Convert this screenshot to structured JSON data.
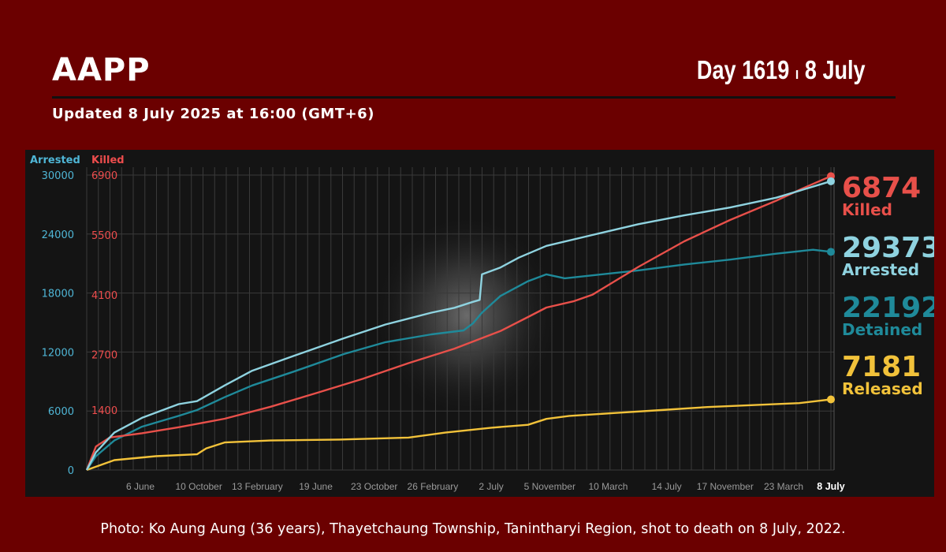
{
  "header": {
    "org": "AAPP",
    "day_label": "Day 1619",
    "day_sep": "ı",
    "day_date": "8 July",
    "updated": "Updated 8 July 2025 at 16:00 (GMT+6)"
  },
  "caption": "Photo: Ko Aung Aung (36 years), Thayetchaung Township, Tanintharyi Region, shot to death on 8 July, 2022.",
  "colors": {
    "arrested": "#8fd3e0",
    "detained": "#1f8a9a",
    "killed": "#e8504a",
    "released": "#f2c23a",
    "axis_arrested": "#4fb6d6",
    "axis_killed": "#ee4d4d"
  },
  "chart_data": {
    "type": "line",
    "left_axis": {
      "label": "Arrested",
      "ticks": [
        0,
        6000,
        12000,
        18000,
        24000,
        30000
      ],
      "ylim": [
        0,
        30000
      ]
    },
    "right_axis": {
      "label": "Killed",
      "ticks": [
        "1400",
        "2700",
        "4100",
        "5500",
        "6900"
      ],
      "ylim": [
        0,
        6900
      ]
    },
    "x_ticks": [
      "6 June",
      "10 October",
      "13 February",
      "19 June",
      "23 October",
      "26 February",
      "2 July",
      "5 November",
      "10 March",
      "14 July",
      "17 November",
      "23 March",
      "8 July"
    ],
    "x_range": [
      0,
      1619
    ],
    "series": [
      {
        "name": "Arrested",
        "key": "arrested",
        "axis": "left",
        "final": "29373",
        "final_label": "Arrested",
        "points": [
          [
            0,
            0
          ],
          [
            20,
            1800
          ],
          [
            60,
            3800
          ],
          [
            120,
            5300
          ],
          [
            200,
            6700
          ],
          [
            240,
            7000
          ],
          [
            300,
            8600
          ],
          [
            360,
            10100
          ],
          [
            450,
            11600
          ],
          [
            560,
            13400
          ],
          [
            650,
            14800
          ],
          [
            750,
            16000
          ],
          [
            800,
            16500
          ],
          [
            840,
            17100
          ],
          [
            855,
            17300
          ],
          [
            860,
            19900
          ],
          [
            900,
            20600
          ],
          [
            940,
            21600
          ],
          [
            1000,
            22800
          ],
          [
            1100,
            23900
          ],
          [
            1200,
            25000
          ],
          [
            1300,
            25900
          ],
          [
            1400,
            26700
          ],
          [
            1500,
            27700
          ],
          [
            1619,
            29373
          ]
        ]
      },
      {
        "name": "Detained",
        "key": "detained",
        "axis": "left",
        "final": "22192",
        "final_label": "Detained",
        "points": [
          [
            0,
            0
          ],
          [
            20,
            1400
          ],
          [
            60,
            3000
          ],
          [
            120,
            4400
          ],
          [
            200,
            5500
          ],
          [
            240,
            6100
          ],
          [
            300,
            7400
          ],
          [
            360,
            8600
          ],
          [
            450,
            10000
          ],
          [
            560,
            11800
          ],
          [
            650,
            13000
          ],
          [
            750,
            13800
          ],
          [
            820,
            14200
          ],
          [
            840,
            14900
          ],
          [
            860,
            16000
          ],
          [
            900,
            17700
          ],
          [
            960,
            19200
          ],
          [
            1000,
            19900
          ],
          [
            1040,
            19500
          ],
          [
            1100,
            19800
          ],
          [
            1200,
            20300
          ],
          [
            1300,
            20900
          ],
          [
            1400,
            21400
          ],
          [
            1500,
            22000
          ],
          [
            1580,
            22400
          ],
          [
            1619,
            22192
          ]
        ]
      },
      {
        "name": "Killed",
        "key": "killed",
        "axis": "right",
        "final": "6874",
        "final_label": "Killed",
        "points": [
          [
            0,
            0
          ],
          [
            20,
            550
          ],
          [
            50,
            760
          ],
          [
            120,
            860
          ],
          [
            200,
            1000
          ],
          [
            300,
            1200
          ],
          [
            400,
            1480
          ],
          [
            500,
            1800
          ],
          [
            600,
            2130
          ],
          [
            700,
            2500
          ],
          [
            800,
            2840
          ],
          [
            900,
            3250
          ],
          [
            960,
            3580
          ],
          [
            1000,
            3800
          ],
          [
            1060,
            3950
          ],
          [
            1100,
            4100
          ],
          [
            1200,
            4750
          ],
          [
            1300,
            5350
          ],
          [
            1400,
            5850
          ],
          [
            1500,
            6300
          ],
          [
            1560,
            6600
          ],
          [
            1619,
            6874
          ]
        ]
      },
      {
        "name": "Released",
        "key": "released",
        "axis": "left",
        "final": "7181",
        "final_label": "Released",
        "points": [
          [
            0,
            0
          ],
          [
            30,
            500
          ],
          [
            60,
            1000
          ],
          [
            150,
            1400
          ],
          [
            240,
            1600
          ],
          [
            260,
            2200
          ],
          [
            300,
            2800
          ],
          [
            400,
            3000
          ],
          [
            550,
            3100
          ],
          [
            700,
            3300
          ],
          [
            780,
            3800
          ],
          [
            880,
            4300
          ],
          [
            960,
            4600
          ],
          [
            1000,
            5200
          ],
          [
            1050,
            5500
          ],
          [
            1150,
            5800
          ],
          [
            1250,
            6100
          ],
          [
            1350,
            6400
          ],
          [
            1450,
            6600
          ],
          [
            1550,
            6800
          ],
          [
            1619,
            7181
          ]
        ]
      }
    ]
  }
}
